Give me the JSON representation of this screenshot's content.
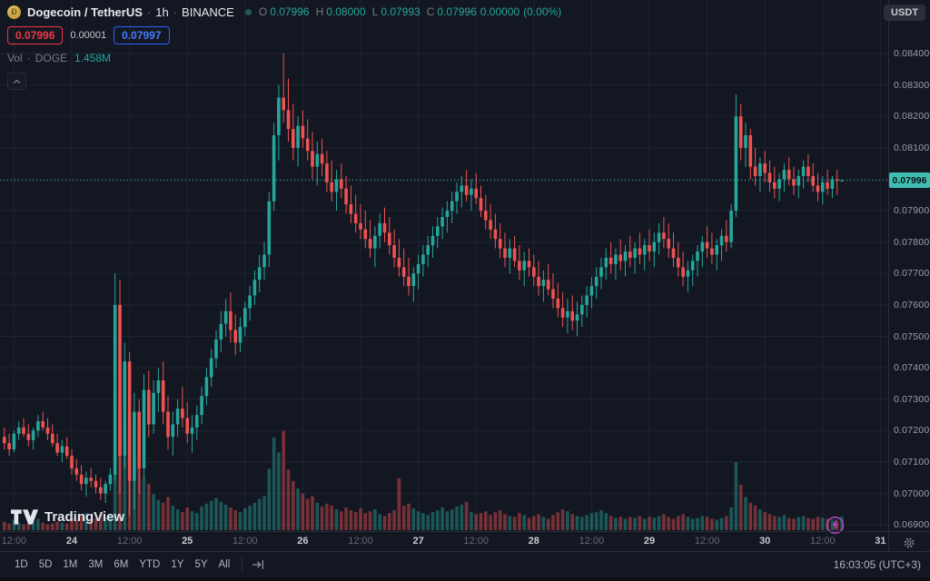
{
  "header": {
    "symbol_name": "Dogecoin / TetherUS",
    "separator": "·",
    "interval": "1h",
    "exchange": "BINANCE",
    "ohlc": [
      {
        "label": "O",
        "value": "0.07996"
      },
      {
        "label": "H",
        "value": "0.08000"
      },
      {
        "label": "L",
        "value": "0.07993"
      },
      {
        "label": "C",
        "value": "0.07996"
      }
    ],
    "change": "0.00000",
    "change_pct": "(0.00%)",
    "currency_badge": "USDT"
  },
  "quote": {
    "bid": "0.07996",
    "spread": "0.00001",
    "ask": "0.07997"
  },
  "volume_row": {
    "label": "Vol",
    "sep": "·",
    "symbol": "DOGE",
    "value": "1.458M"
  },
  "icons": {
    "doge_glyph": "Ð"
  },
  "price_axis": {
    "labels": [
      "0.08400",
      "0.08300",
      "0.08200",
      "0.08100",
      "0.08000",
      "0.07900",
      "0.07800",
      "0.07700",
      "0.07600",
      "0.07500",
      "0.07400",
      "0.07300",
      "0.07200",
      "0.07100",
      "0.07000",
      "0.06900"
    ],
    "current_price_label": "0.07996"
  },
  "time_axis": {
    "labels": [
      {
        "i": 2,
        "text": "12:00",
        "major": false
      },
      {
        "i": 14,
        "text": "24",
        "major": true
      },
      {
        "i": 26,
        "text": "12:00",
        "major": false
      },
      {
        "i": 38,
        "text": "25",
        "major": true
      },
      {
        "i": 50,
        "text": "12:00",
        "major": false
      },
      {
        "i": 62,
        "text": "26",
        "major": true
      },
      {
        "i": 74,
        "text": "12:00",
        "major": false
      },
      {
        "i": 86,
        "text": "27",
        "major": true
      },
      {
        "i": 98,
        "text": "12:00",
        "major": false
      },
      {
        "i": 110,
        "text": "28",
        "major": true
      },
      {
        "i": 122,
        "text": "12:00",
        "major": false
      },
      {
        "i": 134,
        "text": "29",
        "major": true
      },
      {
        "i": 146,
        "text": "12:00",
        "major": false
      },
      {
        "i": 158,
        "text": "30",
        "major": true
      },
      {
        "i": 170,
        "text": "12:00",
        "major": false
      },
      {
        "i": 182,
        "text": "31",
        "major": true
      }
    ]
  },
  "toolbar": {
    "ranges": [
      "1D",
      "5D",
      "1M",
      "3M",
      "6M",
      "YTD",
      "1Y",
      "5Y",
      "All"
    ],
    "clock": "16:03:05 (UTC+3)"
  },
  "watermark": {
    "text": "TradingView"
  },
  "colors": {
    "up": "#26a69a",
    "down": "#ef5350",
    "accent_red": "#f23645",
    "accent_blue": "#2962ff",
    "background": "#131722",
    "grid": "#1e2433",
    "axis_text": "#9aa0ab",
    "tag_bg": "#3fbfb1",
    "tag_text": "#0b121c"
  },
  "chart_data": {
    "type": "candlestick",
    "pair": "DOGE/USDT",
    "interval": "1h",
    "exchange": "BINANCE",
    "current_price": 0.07996,
    "price_axis_range": [
      0.069,
      0.084
    ],
    "volume_unit": "M DOGE",
    "last_volume": 1.458,
    "candles": [
      [
        0.0718,
        0.0721,
        0.0714,
        0.0716,
        0.9
      ],
      [
        0.0716,
        0.0719,
        0.0712,
        0.0714,
        0.7
      ],
      [
        0.0714,
        0.072,
        0.0713,
        0.0719,
        1.1
      ],
      [
        0.0719,
        0.0723,
        0.0717,
        0.0721,
        0.8
      ],
      [
        0.0721,
        0.0724,
        0.0718,
        0.0719,
        0.6
      ],
      [
        0.0719,
        0.0722,
        0.0715,
        0.0717,
        0.7
      ],
      [
        0.0717,
        0.0721,
        0.0714,
        0.072,
        0.9
      ],
      [
        0.072,
        0.0725,
        0.0718,
        0.0723,
        1.2
      ],
      [
        0.0723,
        0.0726,
        0.072,
        0.0721,
        0.8
      ],
      [
        0.0721,
        0.0724,
        0.0717,
        0.0719,
        0.6
      ],
      [
        0.0719,
        0.0722,
        0.0715,
        0.0716,
        0.7
      ],
      [
        0.0716,
        0.0719,
        0.0712,
        0.0713,
        0.9
      ],
      [
        0.0713,
        0.0717,
        0.071,
        0.0715,
        0.8
      ],
      [
        0.0715,
        0.0718,
        0.0711,
        0.0712,
        0.7
      ],
      [
        0.0712,
        0.0714,
        0.0706,
        0.0708,
        1.3
      ],
      [
        0.0708,
        0.0711,
        0.0704,
        0.0706,
        1.1
      ],
      [
        0.0706,
        0.0709,
        0.0701,
        0.0703,
        1.5
      ],
      [
        0.0703,
        0.0707,
        0.0699,
        0.0705,
        1.8
      ],
      [
        0.0705,
        0.0708,
        0.0702,
        0.0704,
        1.0
      ],
      [
        0.0704,
        0.0706,
        0.07,
        0.0702,
        1.2
      ],
      [
        0.0702,
        0.0705,
        0.0698,
        0.07,
        1.6
      ],
      [
        0.07,
        0.0704,
        0.0697,
        0.0703,
        1.4
      ],
      [
        0.0703,
        0.0708,
        0.0701,
        0.0706,
        1.7
      ],
      [
        0.0706,
        0.077,
        0.0704,
        0.076,
        14.2
      ],
      [
        0.076,
        0.0768,
        0.07,
        0.0712,
        12.8
      ],
      [
        0.0712,
        0.0748,
        0.0708,
        0.0742,
        9.5
      ],
      [
        0.0742,
        0.0745,
        0.0693,
        0.0704,
        11.0
      ],
      [
        0.0704,
        0.0732,
        0.0695,
        0.0726,
        7.8
      ],
      [
        0.0726,
        0.073,
        0.07,
        0.0708,
        8.4
      ],
      [
        0.0708,
        0.0738,
        0.0705,
        0.0733,
        5.6
      ],
      [
        0.0733,
        0.0739,
        0.0718,
        0.0722,
        4.9
      ],
      [
        0.0722,
        0.0736,
        0.0719,
        0.0732,
        3.8
      ],
      [
        0.0732,
        0.074,
        0.0726,
        0.0736,
        3.2
      ],
      [
        0.0736,
        0.0742,
        0.0722,
        0.0726,
        2.9
      ],
      [
        0.0726,
        0.0731,
        0.0714,
        0.0718,
        3.5
      ],
      [
        0.0718,
        0.0726,
        0.0712,
        0.0722,
        2.6
      ],
      [
        0.0722,
        0.073,
        0.0718,
        0.0727,
        2.2
      ],
      [
        0.0727,
        0.0734,
        0.0721,
        0.0724,
        1.9
      ],
      [
        0.0724,
        0.0729,
        0.0716,
        0.0719,
        2.4
      ],
      [
        0.0719,
        0.0725,
        0.0713,
        0.0721,
        2.0
      ],
      [
        0.0721,
        0.0728,
        0.0717,
        0.0725,
        1.8
      ],
      [
        0.0725,
        0.0734,
        0.0722,
        0.0731,
        2.5
      ],
      [
        0.0731,
        0.074,
        0.0728,
        0.0737,
        2.8
      ],
      [
        0.0737,
        0.0746,
        0.0734,
        0.0743,
        3.1
      ],
      [
        0.0743,
        0.0752,
        0.074,
        0.0749,
        3.4
      ],
      [
        0.0749,
        0.0758,
        0.0745,
        0.0754,
        3.0
      ],
      [
        0.0754,
        0.0762,
        0.075,
        0.0758,
        2.7
      ],
      [
        0.0758,
        0.0764,
        0.0748,
        0.0752,
        2.4
      ],
      [
        0.0752,
        0.0757,
        0.0744,
        0.0748,
        2.1
      ],
      [
        0.0748,
        0.0756,
        0.0745,
        0.0753,
        1.9
      ],
      [
        0.0753,
        0.0761,
        0.075,
        0.0759,
        2.3
      ],
      [
        0.0759,
        0.0766,
        0.0755,
        0.0763,
        2.6
      ],
      [
        0.0763,
        0.0771,
        0.076,
        0.0768,
        2.9
      ],
      [
        0.0768,
        0.0776,
        0.0764,
        0.0772,
        3.3
      ],
      [
        0.0772,
        0.078,
        0.0768,
        0.0776,
        3.6
      ],
      [
        0.0776,
        0.0796,
        0.0772,
        0.0793,
        6.5
      ],
      [
        0.0793,
        0.0818,
        0.079,
        0.0814,
        9.8
      ],
      [
        0.0814,
        0.083,
        0.0806,
        0.0826,
        8.2
      ],
      [
        0.0826,
        0.084,
        0.0818,
        0.0822,
        10.5
      ],
      [
        0.0822,
        0.0832,
        0.0812,
        0.0816,
        6.4
      ],
      [
        0.0816,
        0.0824,
        0.0806,
        0.081,
        5.2
      ],
      [
        0.081,
        0.082,
        0.0804,
        0.0817,
        4.4
      ],
      [
        0.0817,
        0.0822,
        0.081,
        0.0813,
        3.9
      ],
      [
        0.0813,
        0.0819,
        0.0806,
        0.0809,
        3.3
      ],
      [
        0.0809,
        0.0815,
        0.08,
        0.0804,
        3.6
      ],
      [
        0.0804,
        0.0812,
        0.0798,
        0.0808,
        2.9
      ],
      [
        0.0808,
        0.0813,
        0.0801,
        0.0805,
        2.5
      ],
      [
        0.0805,
        0.0809,
        0.0796,
        0.0799,
        2.8
      ],
      [
        0.0799,
        0.0806,
        0.0793,
        0.0796,
        2.6
      ],
      [
        0.0796,
        0.0803,
        0.079,
        0.08,
        2.2
      ],
      [
        0.08,
        0.0805,
        0.0794,
        0.0797,
        2.0
      ],
      [
        0.0797,
        0.0801,
        0.0789,
        0.0792,
        2.4
      ],
      [
        0.0792,
        0.0798,
        0.0786,
        0.0789,
        2.1
      ],
      [
        0.0789,
        0.0795,
        0.0783,
        0.0786,
        1.9
      ],
      [
        0.0786,
        0.0792,
        0.0781,
        0.0784,
        2.3
      ],
      [
        0.0784,
        0.079,
        0.0778,
        0.0781,
        1.8
      ],
      [
        0.0781,
        0.0787,
        0.0775,
        0.0778,
        2.0
      ],
      [
        0.0778,
        0.0785,
        0.0772,
        0.0782,
        2.2
      ],
      [
        0.0782,
        0.0789,
        0.0778,
        0.0786,
        1.7
      ],
      [
        0.0786,
        0.0791,
        0.078,
        0.0783,
        1.5
      ],
      [
        0.0783,
        0.0788,
        0.0776,
        0.0779,
        1.8
      ],
      [
        0.0779,
        0.0784,
        0.0772,
        0.0775,
        2.1
      ],
      [
        0.0775,
        0.0781,
        0.0769,
        0.0772,
        5.5
      ],
      [
        0.0772,
        0.0778,
        0.0766,
        0.0769,
        2.6
      ],
      [
        0.0769,
        0.0775,
        0.0763,
        0.0766,
        2.8
      ],
      [
        0.0766,
        0.0772,
        0.0761,
        0.077,
        2.3
      ],
      [
        0.077,
        0.0776,
        0.0765,
        0.0773,
        2.0
      ],
      [
        0.0773,
        0.0779,
        0.0769,
        0.0776,
        1.8
      ],
      [
        0.0776,
        0.0782,
        0.0772,
        0.0779,
        1.6
      ],
      [
        0.0779,
        0.0785,
        0.0775,
        0.0782,
        1.9
      ],
      [
        0.0782,
        0.0788,
        0.0778,
        0.0785,
        2.1
      ],
      [
        0.0785,
        0.0791,
        0.0781,
        0.0788,
        2.4
      ],
      [
        0.0788,
        0.0793,
        0.0783,
        0.079,
        2.0
      ],
      [
        0.079,
        0.0796,
        0.0786,
        0.0793,
        2.2
      ],
      [
        0.0793,
        0.0799,
        0.0789,
        0.0796,
        2.5
      ],
      [
        0.0796,
        0.0801,
        0.0791,
        0.0798,
        2.7
      ],
      [
        0.0798,
        0.0803,
        0.0793,
        0.0795,
        3.0
      ],
      [
        0.0795,
        0.08,
        0.079,
        0.0797,
        1.9
      ],
      [
        0.0797,
        0.0802,
        0.0792,
        0.0794,
        1.7
      ],
      [
        0.0794,
        0.0798,
        0.0788,
        0.079,
        1.8
      ],
      [
        0.079,
        0.0795,
        0.0784,
        0.0787,
        2.0
      ],
      [
        0.0787,
        0.0792,
        0.0781,
        0.0784,
        1.6
      ],
      [
        0.0784,
        0.0789,
        0.0778,
        0.0781,
        1.9
      ],
      [
        0.0781,
        0.0786,
        0.0775,
        0.0778,
        2.1
      ],
      [
        0.0778,
        0.0783,
        0.0772,
        0.0775,
        1.7
      ],
      [
        0.0775,
        0.0781,
        0.077,
        0.0778,
        1.5
      ],
      [
        0.0778,
        0.0782,
        0.0772,
        0.0774,
        1.4
      ],
      [
        0.0774,
        0.0779,
        0.0768,
        0.0771,
        1.8
      ],
      [
        0.0771,
        0.0777,
        0.0766,
        0.0774,
        1.6
      ],
      [
        0.0774,
        0.0778,
        0.0769,
        0.0772,
        1.3
      ],
      [
        0.0772,
        0.0776,
        0.0766,
        0.0769,
        1.5
      ],
      [
        0.0769,
        0.0774,
        0.0763,
        0.0766,
        1.7
      ],
      [
        0.0766,
        0.0771,
        0.0761,
        0.0768,
        1.4
      ],
      [
        0.0768,
        0.0773,
        0.0763,
        0.0765,
        1.2
      ],
      [
        0.0765,
        0.077,
        0.0759,
        0.0762,
        1.6
      ],
      [
        0.0762,
        0.0767,
        0.0756,
        0.0759,
        1.9
      ],
      [
        0.0759,
        0.0764,
        0.0753,
        0.0756,
        2.2
      ],
      [
        0.0756,
        0.0762,
        0.0751,
        0.0758,
        2.0
      ],
      [
        0.0758,
        0.0763,
        0.0752,
        0.0755,
        1.7
      ],
      [
        0.0755,
        0.0761,
        0.075,
        0.0757,
        1.5
      ],
      [
        0.0757,
        0.0763,
        0.0753,
        0.076,
        1.4
      ],
      [
        0.076,
        0.0766,
        0.0756,
        0.0763,
        1.6
      ],
      [
        0.0763,
        0.0769,
        0.0759,
        0.0766,
        1.8
      ],
      [
        0.0766,
        0.0772,
        0.0762,
        0.0769,
        1.9
      ],
      [
        0.0769,
        0.0775,
        0.0765,
        0.0772,
        2.1
      ],
      [
        0.0772,
        0.0778,
        0.0768,
        0.0775,
        1.8
      ],
      [
        0.0775,
        0.078,
        0.077,
        0.0773,
        1.5
      ],
      [
        0.0773,
        0.0778,
        0.0768,
        0.0776,
        1.3
      ],
      [
        0.0776,
        0.0781,
        0.0771,
        0.0774,
        1.4
      ],
      [
        0.0774,
        0.0779,
        0.0769,
        0.0777,
        1.2
      ],
      [
        0.0777,
        0.0782,
        0.0772,
        0.0775,
        1.4
      ],
      [
        0.0775,
        0.078,
        0.077,
        0.0778,
        1.3
      ],
      [
        0.0778,
        0.0783,
        0.0773,
        0.0776,
        1.5
      ],
      [
        0.0776,
        0.0781,
        0.0771,
        0.0779,
        1.2
      ],
      [
        0.0779,
        0.0784,
        0.0774,
        0.0777,
        1.4
      ],
      [
        0.0777,
        0.0783,
        0.0772,
        0.078,
        1.3
      ],
      [
        0.078,
        0.0786,
        0.0776,
        0.0783,
        1.5
      ],
      [
        0.0783,
        0.0788,
        0.0778,
        0.0781,
        1.7
      ],
      [
        0.0781,
        0.0786,
        0.0775,
        0.0778,
        1.4
      ],
      [
        0.0778,
        0.0783,
        0.0772,
        0.0775,
        1.2
      ],
      [
        0.0775,
        0.078,
        0.0769,
        0.0772,
        1.5
      ],
      [
        0.0772,
        0.0777,
        0.0766,
        0.0769,
        1.7
      ],
      [
        0.0769,
        0.0774,
        0.0764,
        0.0771,
        1.4
      ],
      [
        0.0771,
        0.0776,
        0.0766,
        0.0774,
        1.2
      ],
      [
        0.0774,
        0.0779,
        0.0769,
        0.0777,
        1.3
      ],
      [
        0.0777,
        0.0782,
        0.0772,
        0.078,
        1.5
      ],
      [
        0.078,
        0.0785,
        0.0775,
        0.0778,
        1.4
      ],
      [
        0.0778,
        0.0783,
        0.0773,
        0.0776,
        1.2
      ],
      [
        0.0776,
        0.0781,
        0.0771,
        0.0779,
        1.1
      ],
      [
        0.0779,
        0.0784,
        0.0774,
        0.0782,
        1.3
      ],
      [
        0.0782,
        0.0787,
        0.0777,
        0.078,
        1.5
      ],
      [
        0.078,
        0.0792,
        0.0778,
        0.079,
        2.4
      ],
      [
        0.079,
        0.0827,
        0.0788,
        0.082,
        7.2
      ],
      [
        0.082,
        0.0824,
        0.0806,
        0.081,
        4.8
      ],
      [
        0.081,
        0.0818,
        0.0804,
        0.0814,
        3.5
      ],
      [
        0.0814,
        0.0816,
        0.08,
        0.0804,
        2.9
      ],
      [
        0.0804,
        0.081,
        0.0798,
        0.0801,
        2.6
      ],
      [
        0.0801,
        0.0807,
        0.0796,
        0.0805,
        2.2
      ],
      [
        0.0805,
        0.0809,
        0.0799,
        0.0802,
        1.9
      ],
      [
        0.0802,
        0.0806,
        0.0796,
        0.0799,
        1.7
      ],
      [
        0.0799,
        0.0804,
        0.0794,
        0.0797,
        1.5
      ],
      [
        0.0797,
        0.0802,
        0.0793,
        0.08,
        1.4
      ],
      [
        0.08,
        0.0805,
        0.0796,
        0.0803,
        1.6
      ],
      [
        0.0803,
        0.0807,
        0.0798,
        0.08,
        1.3
      ],
      [
        0.08,
        0.0804,
        0.0795,
        0.0798,
        1.2
      ],
      [
        0.0798,
        0.0803,
        0.0794,
        0.0801,
        1.4
      ],
      [
        0.0801,
        0.0806,
        0.0797,
        0.0804,
        1.5
      ],
      [
        0.0804,
        0.0808,
        0.0799,
        0.0801,
        1.3
      ],
      [
        0.0801,
        0.0805,
        0.0796,
        0.0798,
        1.2
      ],
      [
        0.0798,
        0.0802,
        0.0793,
        0.0796,
        1.4
      ],
      [
        0.0796,
        0.0801,
        0.0792,
        0.0799,
        1.3
      ],
      [
        0.0799,
        0.0803,
        0.0795,
        0.0797,
        1.2
      ],
      [
        0.0797,
        0.0801,
        0.0794,
        0.08,
        1.1
      ],
      [
        0.08,
        0.0803,
        0.0795,
        0.07996,
        1.0
      ],
      [
        0.07996,
        0.08,
        0.07993,
        0.07996,
        1.458
      ]
    ]
  }
}
